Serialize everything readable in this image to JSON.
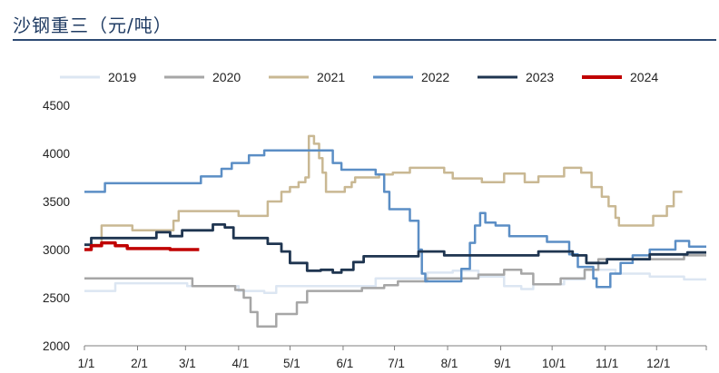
{
  "page_title": "沙钢重三（元/吨）",
  "chart_data": {
    "type": "line",
    "title": "沙钢重三（元/吨）",
    "xlabel": "",
    "ylabel": "",
    "ylim": [
      2000,
      4500
    ],
    "yticks": [
      "2000",
      "2500",
      "3000",
      "3500",
      "4000",
      "4500"
    ],
    "xtick_labels": [
      "1/1",
      "2/1",
      "3/1",
      "4/1",
      "5/1",
      "6/1",
      "7/1",
      "8/1",
      "9/1",
      "10/1",
      "11/1",
      "12/1"
    ],
    "xtick_days": [
      0,
      31,
      59,
      90,
      120,
      151,
      181,
      212,
      243,
      273,
      304,
      334
    ],
    "x_unit": "day of year (1/1 = 0)",
    "grid": false,
    "legend_position": "top",
    "series": [
      {
        "name": "2019",
        "color": "#dce6f2",
        "width": 2.5,
        "points": [
          [
            0,
            2570
          ],
          [
            18,
            2570
          ],
          [
            18,
            2650
          ],
          [
            60,
            2650
          ],
          [
            60,
            2620
          ],
          [
            90,
            2620
          ],
          [
            90,
            2570
          ],
          [
            105,
            2570
          ],
          [
            105,
            2550
          ],
          [
            112,
            2550
          ],
          [
            112,
            2620
          ],
          [
            170,
            2620
          ],
          [
            170,
            2700
          ],
          [
            200,
            2700
          ],
          [
            200,
            2760
          ],
          [
            215,
            2760
          ],
          [
            215,
            2780
          ],
          [
            230,
            2780
          ],
          [
            230,
            2720
          ],
          [
            245,
            2720
          ],
          [
            245,
            2620
          ],
          [
            255,
            2620
          ],
          [
            255,
            2590
          ],
          [
            262,
            2590
          ],
          [
            262,
            2640
          ],
          [
            280,
            2640
          ],
          [
            280,
            2690
          ],
          [
            292,
            2690
          ],
          [
            292,
            2790
          ],
          [
            310,
            2790
          ],
          [
            310,
            2750
          ],
          [
            330,
            2750
          ],
          [
            330,
            2720
          ],
          [
            350,
            2720
          ],
          [
            350,
            2690
          ],
          [
            363,
            2690
          ]
        ]
      },
      {
        "name": "2020",
        "color": "#a6a6a6",
        "width": 2.5,
        "points": [
          [
            0,
            2700
          ],
          [
            63,
            2700
          ],
          [
            63,
            2620
          ],
          [
            88,
            2620
          ],
          [
            88,
            2580
          ],
          [
            93,
            2580
          ],
          [
            93,
            2500
          ],
          [
            97,
            2500
          ],
          [
            97,
            2350
          ],
          [
            101,
            2350
          ],
          [
            101,
            2200
          ],
          [
            112,
            2200
          ],
          [
            112,
            2330
          ],
          [
            124,
            2330
          ],
          [
            124,
            2450
          ],
          [
            130,
            2450
          ],
          [
            130,
            2570
          ],
          [
            162,
            2570
          ],
          [
            162,
            2600
          ],
          [
            175,
            2600
          ],
          [
            175,
            2630
          ],
          [
            183,
            2630
          ],
          [
            183,
            2670
          ],
          [
            200,
            2670
          ],
          [
            200,
            2700
          ],
          [
            230,
            2700
          ],
          [
            230,
            2740
          ],
          [
            245,
            2740
          ],
          [
            245,
            2790
          ],
          [
            255,
            2790
          ],
          [
            255,
            2750
          ],
          [
            262,
            2750
          ],
          [
            262,
            2640
          ],
          [
            278,
            2640
          ],
          [
            278,
            2700
          ],
          [
            292,
            2700
          ],
          [
            292,
            2790
          ],
          [
            300,
            2790
          ],
          [
            300,
            2900
          ],
          [
            350,
            2900
          ],
          [
            350,
            2940
          ],
          [
            363,
            2940
          ]
        ]
      },
      {
        "name": "2021",
        "color": "#c9b893",
        "width": 2.5,
        "points": [
          [
            0,
            3050
          ],
          [
            10,
            3050
          ],
          [
            10,
            3250
          ],
          [
            28,
            3250
          ],
          [
            28,
            3200
          ],
          [
            52,
            3200
          ],
          [
            52,
            3300
          ],
          [
            55,
            3300
          ],
          [
            55,
            3400
          ],
          [
            90,
            3400
          ],
          [
            90,
            3350
          ],
          [
            107,
            3350
          ],
          [
            107,
            3500
          ],
          [
            115,
            3500
          ],
          [
            115,
            3600
          ],
          [
            120,
            3600
          ],
          [
            120,
            3650
          ],
          [
            125,
            3650
          ],
          [
            125,
            3700
          ],
          [
            129,
            3700
          ],
          [
            129,
            3750
          ],
          [
            131,
            3750
          ],
          [
            131,
            4180
          ],
          [
            134,
            4180
          ],
          [
            134,
            4100
          ],
          [
            137,
            4100
          ],
          [
            137,
            3950
          ],
          [
            139,
            3950
          ],
          [
            139,
            3800
          ],
          [
            141,
            3800
          ],
          [
            141,
            3600
          ],
          [
            152,
            3600
          ],
          [
            152,
            3650
          ],
          [
            156,
            3650
          ],
          [
            156,
            3700
          ],
          [
            158,
            3700
          ],
          [
            158,
            3750
          ],
          [
            172,
            3750
          ],
          [
            172,
            3780
          ],
          [
            180,
            3780
          ],
          [
            180,
            3800
          ],
          [
            190,
            3800
          ],
          [
            190,
            3850
          ],
          [
            210,
            3850
          ],
          [
            210,
            3800
          ],
          [
            215,
            3800
          ],
          [
            215,
            3740
          ],
          [
            232,
            3740
          ],
          [
            232,
            3700
          ],
          [
            245,
            3700
          ],
          [
            245,
            3790
          ],
          [
            257,
            3790
          ],
          [
            257,
            3700
          ],
          [
            265,
            3700
          ],
          [
            265,
            3760
          ],
          [
            280,
            3760
          ],
          [
            280,
            3850
          ],
          [
            290,
            3850
          ],
          [
            290,
            3800
          ],
          [
            296,
            3800
          ],
          [
            296,
            3650
          ],
          [
            302,
            3650
          ],
          [
            302,
            3550
          ],
          [
            306,
            3550
          ],
          [
            306,
            3450
          ],
          [
            310,
            3450
          ],
          [
            310,
            3330
          ],
          [
            312,
            3330
          ],
          [
            312,
            3250
          ],
          [
            332,
            3250
          ],
          [
            332,
            3350
          ],
          [
            340,
            3350
          ],
          [
            340,
            3450
          ],
          [
            344,
            3450
          ],
          [
            344,
            3600
          ],
          [
            349,
            3600
          ]
        ]
      },
      {
        "name": "2022",
        "color": "#5b8ec5",
        "width": 2.5,
        "points": [
          [
            0,
            3600
          ],
          [
            12,
            3600
          ],
          [
            12,
            3690
          ],
          [
            68,
            3690
          ],
          [
            68,
            3760
          ],
          [
            80,
            3760
          ],
          [
            80,
            3840
          ],
          [
            86,
            3840
          ],
          [
            86,
            3900
          ],
          [
            96,
            3900
          ],
          [
            96,
            3980
          ],
          [
            105,
            3980
          ],
          [
            105,
            4030
          ],
          [
            145,
            4030
          ],
          [
            145,
            3900
          ],
          [
            150,
            3900
          ],
          [
            150,
            3830
          ],
          [
            170,
            3830
          ],
          [
            170,
            3780
          ],
          [
            175,
            3780
          ],
          [
            175,
            3600
          ],
          [
            178,
            3600
          ],
          [
            178,
            3420
          ],
          [
            190,
            3420
          ],
          [
            190,
            3300
          ],
          [
            195,
            3300
          ],
          [
            195,
            3000
          ],
          [
            197,
            3000
          ],
          [
            197,
            2750
          ],
          [
            199,
            2750
          ],
          [
            199,
            2670
          ],
          [
            220,
            2670
          ],
          [
            220,
            2800
          ],
          [
            225,
            2800
          ],
          [
            225,
            3070
          ],
          [
            228,
            3070
          ],
          [
            228,
            3250
          ],
          [
            231,
            3250
          ],
          [
            231,
            3380
          ],
          [
            234,
            3380
          ],
          [
            234,
            3280
          ],
          [
            240,
            3280
          ],
          [
            240,
            3250
          ],
          [
            248,
            3250
          ],
          [
            248,
            3140
          ],
          [
            270,
            3140
          ],
          [
            270,
            3080
          ],
          [
            283,
            3080
          ],
          [
            283,
            2950
          ],
          [
            288,
            2950
          ],
          [
            288,
            2820
          ],
          [
            297,
            2820
          ],
          [
            297,
            2700
          ],
          [
            299,
            2700
          ],
          [
            299,
            2610
          ],
          [
            307,
            2610
          ],
          [
            307,
            2750
          ],
          [
            313,
            2750
          ],
          [
            313,
            2860
          ],
          [
            320,
            2860
          ],
          [
            320,
            2940
          ],
          [
            330,
            2940
          ],
          [
            330,
            3000
          ],
          [
            345,
            3000
          ],
          [
            345,
            3090
          ],
          [
            353,
            3090
          ],
          [
            353,
            3030
          ],
          [
            363,
            3030
          ]
        ]
      },
      {
        "name": "2023",
        "color": "#1f3550",
        "width": 2.8,
        "points": [
          [
            0,
            3050
          ],
          [
            4,
            3050
          ],
          [
            4,
            3120
          ],
          [
            42,
            3120
          ],
          [
            42,
            3180
          ],
          [
            50,
            3180
          ],
          [
            50,
            3140
          ],
          [
            57,
            3140
          ],
          [
            57,
            3200
          ],
          [
            75,
            3200
          ],
          [
            75,
            3260
          ],
          [
            82,
            3260
          ],
          [
            82,
            3230
          ],
          [
            87,
            3230
          ],
          [
            87,
            3120
          ],
          [
            107,
            3120
          ],
          [
            107,
            3060
          ],
          [
            115,
            3060
          ],
          [
            115,
            2980
          ],
          [
            120,
            2980
          ],
          [
            120,
            2860
          ],
          [
            130,
            2860
          ],
          [
            130,
            2780
          ],
          [
            138,
            2780
          ],
          [
            138,
            2790
          ],
          [
            145,
            2790
          ],
          [
            145,
            2760
          ],
          [
            150,
            2760
          ],
          [
            150,
            2790
          ],
          [
            157,
            2790
          ],
          [
            157,
            2870
          ],
          [
            163,
            2870
          ],
          [
            163,
            2930
          ],
          [
            195,
            2930
          ],
          [
            195,
            2980
          ],
          [
            210,
            2980
          ],
          [
            210,
            2940
          ],
          [
            265,
            2940
          ],
          [
            265,
            2980
          ],
          [
            285,
            2980
          ],
          [
            285,
            2940
          ],
          [
            293,
            2940
          ],
          [
            293,
            2860
          ],
          [
            305,
            2860
          ],
          [
            305,
            2900
          ],
          [
            330,
            2900
          ],
          [
            330,
            2950
          ],
          [
            352,
            2950
          ],
          [
            352,
            2970
          ],
          [
            363,
            2970
          ]
        ]
      },
      {
        "name": "2024",
        "color": "#c00000",
        "width": 3.5,
        "points": [
          [
            0,
            3000
          ],
          [
            4,
            3000
          ],
          [
            4,
            3040
          ],
          [
            10,
            3040
          ],
          [
            10,
            3070
          ],
          [
            18,
            3070
          ],
          [
            18,
            3040
          ],
          [
            25,
            3040
          ],
          [
            25,
            3010
          ],
          [
            50,
            3010
          ],
          [
            50,
            3000
          ],
          [
            67,
            3000
          ]
        ]
      }
    ]
  }
}
